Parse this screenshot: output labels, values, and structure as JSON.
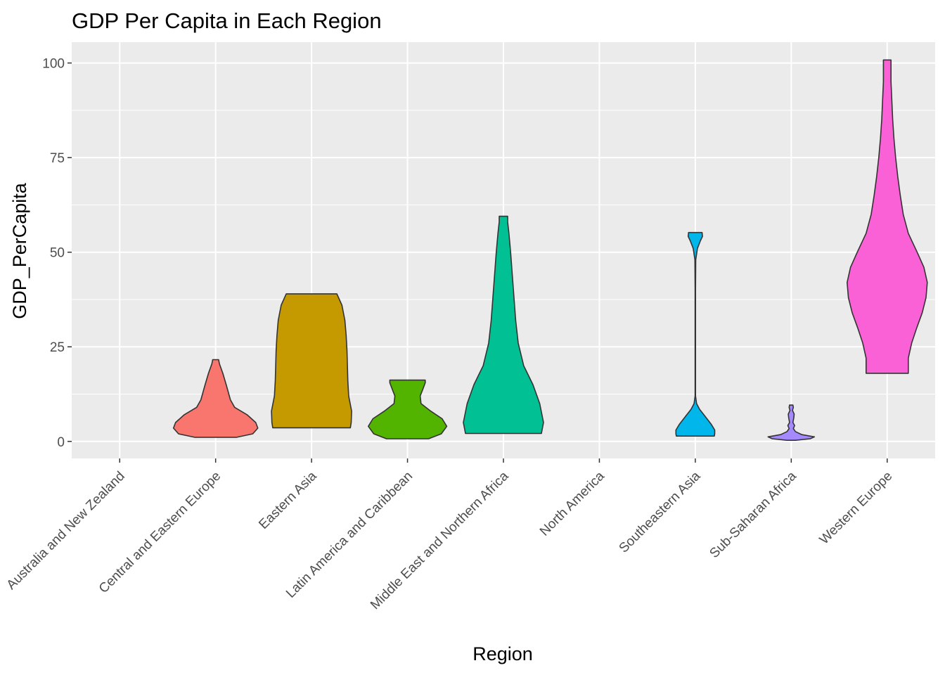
{
  "chart_data": {
    "type": "violin",
    "title": "GDP Per Capita in Each Region",
    "xlabel": "Region",
    "ylabel": "GDP_PerCapita",
    "ylim": [
      -4.5,
      105.5
    ],
    "yticks": [
      0,
      25,
      50,
      75,
      100
    ],
    "grid": true,
    "legend": "none",
    "categories": [
      "Australia and New Zealand",
      "Central and Eastern Europe",
      "Eastern Asia",
      "Latin America and Caribbean",
      "Middle East and Northern Africa",
      "North America",
      "Southeastern Asia",
      "Sub-Saharan Africa",
      "Western Europe"
    ],
    "violins": [
      {
        "category": "Australia and New Zealand",
        "color": null,
        "profile": []
      },
      {
        "category": "Central and Eastern Europe",
        "color": "#F8766D",
        "profile": [
          [
            1.1,
            0.5
          ],
          [
            2.0,
            0.88
          ],
          [
            3.5,
            1.0
          ],
          [
            5.0,
            0.95
          ],
          [
            7.0,
            0.75
          ],
          [
            9.0,
            0.45
          ],
          [
            11.0,
            0.35
          ],
          [
            13.0,
            0.3
          ],
          [
            15.0,
            0.25
          ],
          [
            18.0,
            0.17
          ],
          [
            20.5,
            0.09
          ],
          [
            21.6,
            0.07
          ]
        ]
      },
      {
        "category": "Eastern Asia",
        "color": "#C49A00",
        "profile": [
          [
            3.6,
            0.92
          ],
          [
            5.0,
            0.94
          ],
          [
            8.0,
            0.95
          ],
          [
            12.0,
            0.88
          ],
          [
            16.0,
            0.86
          ],
          [
            20.0,
            0.85
          ],
          [
            24.0,
            0.84
          ],
          [
            28.0,
            0.82
          ],
          [
            32.0,
            0.79
          ],
          [
            36.0,
            0.72
          ],
          [
            38.0,
            0.64
          ],
          [
            39.0,
            0.6
          ]
        ]
      },
      {
        "category": "Latin America and Caribbean",
        "color": "#53B400",
        "profile": [
          [
            0.7,
            0.5
          ],
          [
            2.0,
            0.8
          ],
          [
            4.0,
            0.93
          ],
          [
            6.0,
            0.82
          ],
          [
            8.0,
            0.55
          ],
          [
            10.0,
            0.32
          ],
          [
            12.0,
            0.3
          ],
          [
            14.0,
            0.37
          ],
          [
            15.5,
            0.42
          ],
          [
            16.2,
            0.42
          ]
        ]
      },
      {
        "category": "Middle East and Northern Africa",
        "color": "#00C094",
        "profile": [
          [
            2.1,
            0.9
          ],
          [
            5.0,
            0.95
          ],
          [
            10.0,
            0.86
          ],
          [
            15.0,
            0.7
          ],
          [
            20.0,
            0.48
          ],
          [
            26.0,
            0.35
          ],
          [
            32.0,
            0.29
          ],
          [
            38.0,
            0.25
          ],
          [
            44.0,
            0.21
          ],
          [
            50.0,
            0.17
          ],
          [
            55.0,
            0.13
          ],
          [
            58.0,
            0.1
          ],
          [
            59.5,
            0.1
          ]
        ]
      },
      {
        "category": "North America",
        "color": null,
        "profile": []
      },
      {
        "category": "Southeastern Asia",
        "color": "#00B6EB",
        "profile": [
          [
            1.4,
            0.45
          ],
          [
            2.0,
            0.46
          ],
          [
            3.0,
            0.46
          ],
          [
            4.5,
            0.38
          ],
          [
            6.5,
            0.24
          ],
          [
            8.5,
            0.1
          ],
          [
            10.0,
            0.03
          ],
          [
            12.0,
            0.005
          ],
          [
            20.0,
            0.005
          ],
          [
            30.0,
            0.005
          ],
          [
            40.0,
            0.005
          ],
          [
            48.0,
            0.01
          ],
          [
            51.0,
            0.05
          ],
          [
            53.0,
            0.12
          ],
          [
            54.2,
            0.17
          ],
          [
            55.2,
            0.16
          ]
        ]
      },
      {
        "category": "Sub-Saharan Africa",
        "color": "#A58AFF",
        "profile": [
          [
            0.3,
            0.1
          ],
          [
            0.7,
            0.45
          ],
          [
            1.2,
            0.55
          ],
          [
            1.8,
            0.25
          ],
          [
            2.6,
            0.1
          ],
          [
            3.4,
            0.05
          ],
          [
            4.2,
            0.08
          ],
          [
            5.0,
            0.04
          ],
          [
            6.2,
            0.06
          ],
          [
            7.2,
            0.07
          ],
          [
            8.2,
            0.03
          ],
          [
            9.0,
            0.05
          ],
          [
            9.6,
            0.04
          ]
        ]
      },
      {
        "category": "Western Europe",
        "color": "#FB61D7",
        "profile": [
          [
            18.0,
            0.5
          ],
          [
            22.0,
            0.5
          ],
          [
            26.0,
            0.58
          ],
          [
            30.0,
            0.7
          ],
          [
            34.0,
            0.83
          ],
          [
            38.0,
            0.92
          ],
          [
            42.0,
            0.95
          ],
          [
            46.0,
            0.87
          ],
          [
            50.0,
            0.71
          ],
          [
            55.0,
            0.5
          ],
          [
            60.0,
            0.38
          ],
          [
            65.0,
            0.31
          ],
          [
            70.0,
            0.25
          ],
          [
            75.0,
            0.2
          ],
          [
            80.0,
            0.16
          ],
          [
            85.0,
            0.13
          ],
          [
            90.0,
            0.11
          ],
          [
            95.0,
            0.09
          ],
          [
            100.8,
            0.09
          ]
        ]
      }
    ]
  }
}
